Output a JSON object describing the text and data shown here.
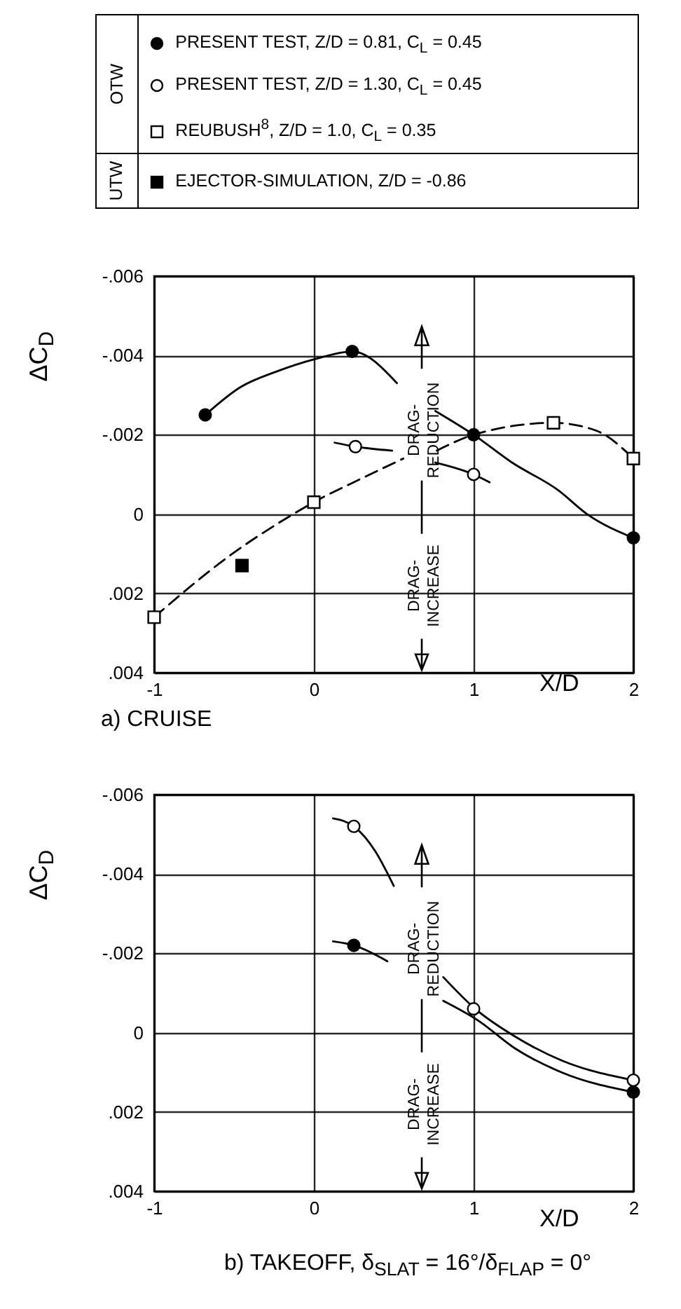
{
  "chart_data": [
    {
      "type": "scatter",
      "title": "a) CRUISE",
      "xlabel": "X/D",
      "ylabel": "ΔC$_{D}$",
      "legend": "top",
      "grid": true,
      "annotations": [
        "OTW",
        "UTW",
        "DRAG-\nREDUCTION",
        "DRAG-\nINCREASE"
      ],
      "xlim": [
        -1,
        2
      ],
      "xticks": [
        -1,
        0,
        1,
        2
      ],
      "ylim": [
        0.004,
        -0.006
      ],
      "yticks": [
        {
          "value": -0.006,
          "label": "-.006"
        },
        {
          "value": -0.004,
          "label": "-.004"
        },
        {
          "value": -0.002,
          "label": "-.002"
        },
        0,
        {
          "value": 0.002,
          "label": ".002"
        },
        {
          "value": 0.004,
          "label": ".004"
        }
      ],
      "series": [
        {
          "type": "line",
          "color": "#000000",
          "line_style": "solid",
          "x": [
            -0.68,
            -0.46,
            -0.23,
            0,
            0.24,
            0.52,
            0.64,
            0.76,
            1,
            1.24,
            1.53,
            1.71,
            2
          ],
          "values": [
            -0.0025,
            -0.0032,
            -0.0036,
            -0.0039,
            -0.0041,
            -0.0033,
            null,
            -0.0026,
            -0.002,
            -0.0013,
            -0.0006,
            0,
            0.0006
          ]
        },
        {
          "type": "line",
          "color": "#000000",
          "line_style": "solid",
          "x": [
            0.13,
            0.26,
            0.49,
            0.62,
            0.76,
            1,
            1.1
          ],
          "values": [
            -0.0018,
            -0.0017,
            -0.0016,
            null,
            -0.0013,
            -0.001,
            -0.0008
          ]
        },
        {
          "type": "line",
          "color": "#000000",
          "line_style": "dashed",
          "x": [
            -1,
            -0.51,
            -0.17,
            0,
            0.3,
            0.56,
            0.66,
            0.77,
            1,
            1.5,
            1.77,
            2
          ],
          "values": [
            0.0026,
            0.001,
            0.0001,
            -0.0003,
            -0.0009,
            -0.0014,
            null,
            -0.0016,
            -0.002,
            -0.0023,
            -0.0021,
            -0.0014
          ]
        },
        {
          "name": "PRESENT TEST, Z/D = 0.81, C$_{L}$ = 0.45",
          "type": "scatter",
          "marker": "circle",
          "color": "#000000",
          "x": [
            -0.68,
            0.24,
            1,
            2
          ],
          "values": [
            -0.0025,
            -0.0041,
            -0.002,
            0.0006
          ]
        },
        {
          "name": "PRESENT TEST, Z/D = 1.30, C$_{L}$ = 0.45",
          "type": "scatter",
          "marker": "circle",
          "color": "#ffffff",
          "x": [
            0.26,
            1
          ],
          "values": [
            -0.0017,
            -0.001
          ]
        },
        {
          "name": "REUBUSH$^{8}$, Z/D = 1.0, C$_{L}$ = 0.35",
          "type": "scatter",
          "marker": "square",
          "color": "#ffffff",
          "x": [
            -1,
            0,
            1.5,
            2
          ],
          "values": [
            0.0026,
            -0.0003,
            -0.0023,
            -0.0014
          ]
        },
        {
          "name": "EJECTOR-SIMULATION, Z/D = -0.86",
          "type": "scatter",
          "marker": "square",
          "color": "#000000",
          "x": [
            -0.45
          ],
          "values": [
            0.0013
          ]
        }
      ]
    },
    {
      "type": "scatter",
      "title": "b) TAKEOFF, δ$_{SLAT}$ = 16°/δ$_{FLAP}$ = 0°",
      "xlabel": "X/D",
      "ylabel": "ΔC$_{D}$",
      "grid": true,
      "annotations": [
        "DRAG-\nREDUCTION",
        "DRAG-\nINCREASE"
      ],
      "xlim": [
        -1,
        2
      ],
      "xticks": [
        -1,
        0,
        1,
        2
      ],
      "ylim": [
        0.004,
        -0.006
      ],
      "yticks": [
        {
          "value": -0.006,
          "label": "-.006"
        },
        {
          "value": -0.004,
          "label": "-.004"
        },
        {
          "value": -0.002,
          "label": "-.002"
        },
        0,
        {
          "value": 0.002,
          "label": ".002"
        },
        {
          "value": 0.004,
          "label": ".004"
        }
      ],
      "series": [
        {
          "type": "line",
          "color": "#000000",
          "line_style": "solid",
          "x": [
            0.12,
            0.25,
            0.38,
            0.5,
            0.65,
            0.81,
            1.01,
            1.26,
            1.55,
            2
          ],
          "values": [
            -0.0054,
            -0.0052,
            -0.0046,
            -0.0037,
            null,
            -0.0014,
            -0.0006,
            0.0001,
            0.0007,
            0.0012
          ]
        },
        {
          "type": "line",
          "color": "#000000",
          "line_style": "solid",
          "x": [
            0.12,
            0.25,
            0.46,
            0.65,
            0.81,
            1.03,
            1.26,
            1.55,
            2
          ],
          "values": [
            -0.0023,
            -0.0022,
            -0.0018,
            null,
            -0.0008,
            -0.0003,
            0.0004,
            0.001,
            0.0015
          ]
        },
        {
          "type": "scatter",
          "marker": "circle",
          "color": "#ffffff",
          "x": [
            0.25,
            1,
            2
          ],
          "values": [
            -0.0052,
            -0.0006,
            0.0012
          ]
        },
        {
          "type": "scatter",
          "marker": "circle",
          "color": "#000000",
          "x": [
            0.25,
            2
          ],
          "values": [
            -0.0022,
            0.0015
          ]
        }
      ]
    }
  ]
}
